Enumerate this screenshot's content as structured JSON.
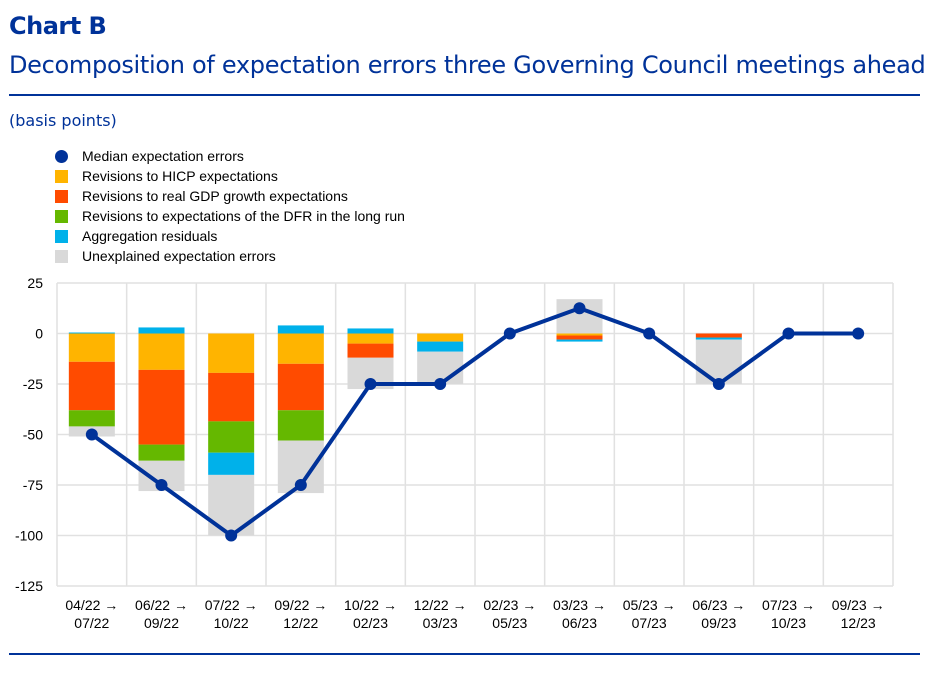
{
  "header": {
    "chart_label": "Chart B",
    "title": "Decomposition of expectation errors three Governing Council meetings ahead",
    "unit": "(basis points)"
  },
  "colors": {
    "median": "#003299",
    "hicp": "#FFB400",
    "gdp": "#FF4B00",
    "dfr": "#65B800",
    "agg": "#00B1EA",
    "unexplained": "#D9D9D9",
    "grid": "#E1E1E1"
  },
  "chart_data": {
    "type": "bar",
    "stacked": true,
    "title": "Decomposition of expectation errors three Governing Council meetings ahead",
    "ylabel": "basis points",
    "ylim": [
      -125,
      25
    ],
    "yticks": [
      25,
      0,
      -25,
      -50,
      -75,
      -100,
      -125
    ],
    "grid": true,
    "legend_position": "top-left",
    "categories": [
      "04/22 → 07/22",
      "06/22 → 09/22",
      "07/22 → 10/22",
      "09/22 → 12/22",
      "10/22 → 02/23",
      "12/22 → 03/23",
      "02/23 → 05/23",
      "03/23 → 06/23",
      "05/23 → 07/23",
      "06/23 → 09/23",
      "07/23 → 10/23",
      "09/23 → 12/23"
    ],
    "series": [
      {
        "key": "hicp",
        "name": "Revisions to HICP expectations",
        "values": [
          -14,
          -18,
          -19.5,
          -15,
          -5,
          -4,
          0,
          -1,
          0,
          0,
          0,
          0
        ]
      },
      {
        "key": "gdp",
        "name": "Revisions to real GDP growth expectations",
        "values": [
          -24,
          -37,
          -24,
          -23,
          -7,
          0,
          0,
          -2,
          0,
          -2,
          0,
          0
        ]
      },
      {
        "key": "dfr",
        "name": "Revisions to expectations of the DFR in the long run",
        "values": [
          -8,
          -8,
          -15.5,
          -15,
          0,
          0,
          0,
          0,
          0,
          0,
          0,
          0
        ]
      },
      {
        "key": "agg",
        "name": "Aggregation residuals",
        "values": [
          0.5,
          3,
          -11,
          4,
          2.5,
          -5,
          0,
          -1,
          0,
          -1,
          0,
          0
        ]
      },
      {
        "key": "unexplained",
        "name": "Unexplained expectation errors",
        "values": [
          -5,
          -15,
          -30,
          -26,
          -15.5,
          -16,
          0,
          17,
          0,
          -22,
          0,
          0
        ]
      }
    ],
    "line": {
      "key": "median",
      "name": "Median expectation errors",
      "values": [
        -50,
        -75,
        -100,
        -75,
        -25,
        -25,
        0,
        12.5,
        0,
        -25,
        0,
        0
      ]
    }
  }
}
